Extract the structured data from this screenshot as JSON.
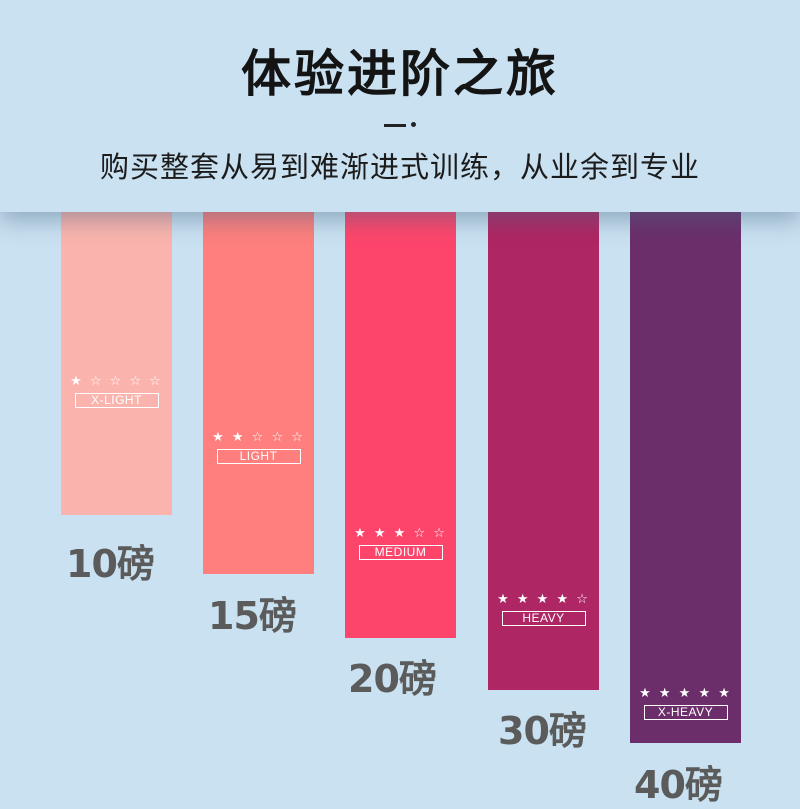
{
  "header": {
    "title": "体验进阶之旅",
    "subtitle": "购买整套从易到难渐进式训练，从业余到专业"
  },
  "bands": [
    {
      "stars": "★ ☆ ☆ ☆ ☆",
      "level": "X-LIGHT",
      "weight": "10磅",
      "color": "#fbb4ad"
    },
    {
      "stars": "★ ★ ☆ ☆ ☆",
      "level": "LIGHT",
      "weight": "15磅",
      "color": "#fe7f7d"
    },
    {
      "stars": "★ ★ ★ ☆ ☆",
      "level": "MEDIUM",
      "weight": "20磅",
      "color": "#fd456b"
    },
    {
      "stars": "★ ★ ★ ★ ☆",
      "level": "HEAVY",
      "weight": "30磅",
      "color": "#ae2663"
    },
    {
      "stars": "★ ★ ★ ★ ★",
      "level": "X-HEAVY",
      "weight": "40磅",
      "color": "#6b2e6a"
    }
  ]
}
